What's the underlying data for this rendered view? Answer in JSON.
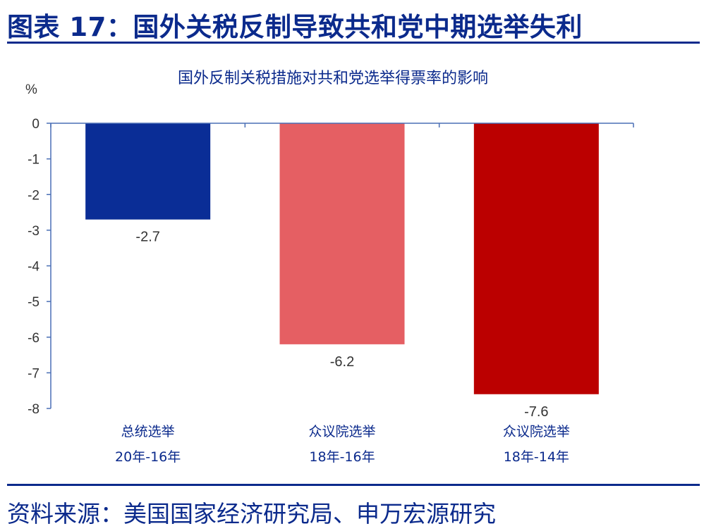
{
  "figure_title": "图表 17：国外关税反制导致共和党中期选举失利",
  "source": "资料来源：美国国家经济研究局、申万宏源研究",
  "chart_data": {
    "type": "bar",
    "title": "国外反制关税措施对共和党选举得票率的影响",
    "ylabel": "%",
    "xlabel": "",
    "ylim": [
      -8,
      0
    ],
    "yticks": [
      0,
      -1,
      -2,
      -3,
      -4,
      -5,
      -6,
      -7,
      -8
    ],
    "categories": [
      {
        "line1": "总统选举",
        "line2": "20年-16年"
      },
      {
        "line1": "众议院选举",
        "line2": "18年-16年"
      },
      {
        "line1": "众议院选举",
        "line2": "18年-14年"
      }
    ],
    "values": [
      -2.7,
      -6.2,
      -7.6
    ],
    "value_labels": [
      "-2.7",
      "-6.2",
      "-7.6"
    ],
    "colors": [
      "#0a2d96",
      "#e55f63",
      "#bb0000"
    ],
    "axis_color": "#4a6fb5",
    "grid": false,
    "legend": "none"
  }
}
